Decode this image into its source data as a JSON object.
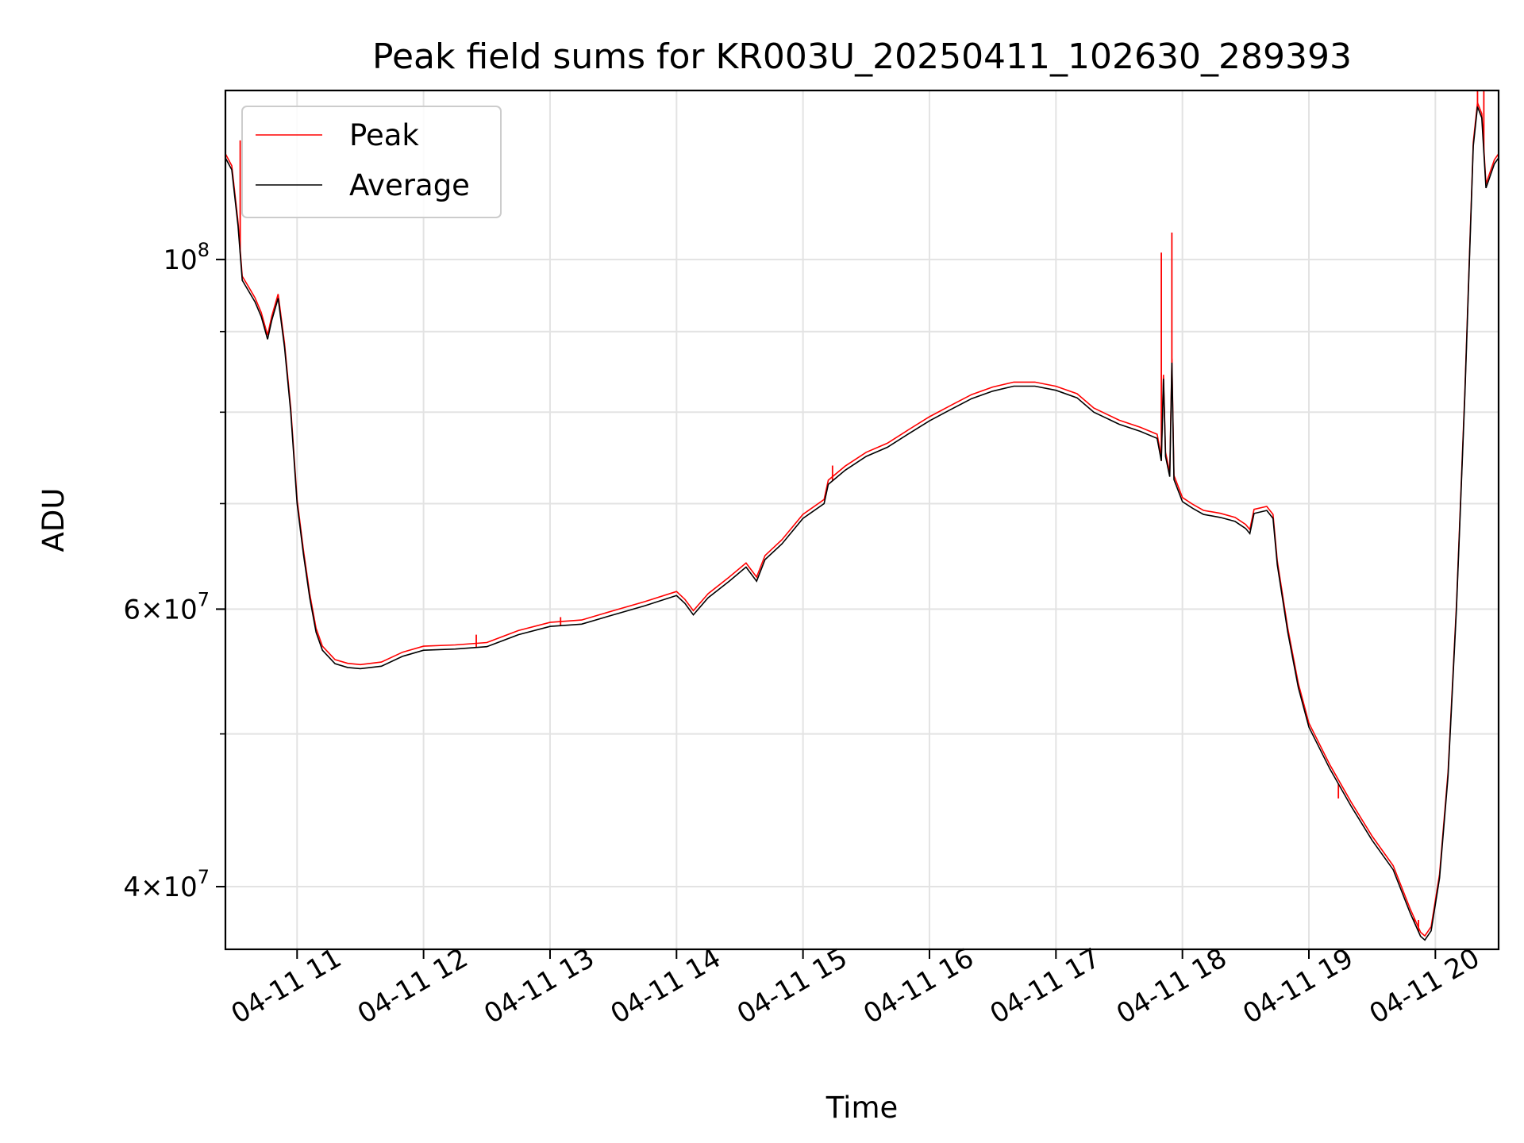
{
  "chart_data": {
    "type": "line",
    "title": "Peak field sums for KR003U_20250411_102630_289393",
    "xlabel": "Time",
    "ylabel": "ADU",
    "y_scale": "log",
    "ylim": [
      36500000,
      128000000
    ],
    "xlim": [
      "2025-04-11 10:26",
      "2025-04-11 20:30"
    ],
    "grid": true,
    "legend_location": "upper-left",
    "x_tick_labels": [
      "04-11 11",
      "04-11 12",
      "04-11 13",
      "04-11 14",
      "04-11 15",
      "04-11 16",
      "04-11 17",
      "04-11 18",
      "04-11 19",
      "04-11 20"
    ],
    "y_tick_labels": [
      {
        "value": 100000000,
        "base": "10",
        "exp": "8"
      },
      {
        "value": 60000000,
        "mant": "6",
        "base": "10",
        "exp": "7"
      },
      {
        "value": 40000000,
        "mant": "4",
        "base": "10",
        "exp": "7"
      }
    ],
    "y_minor_ticks": [
      50000000,
      70000000,
      80000000,
      90000000
    ],
    "series": [
      {
        "name": "Average",
        "color": "#000000",
        "points": [
          [
            "2025-04-11 10:26",
            116000000
          ],
          [
            "2025-04-11 10:29",
            114000000
          ],
          [
            "2025-04-11 10:32",
            105000000
          ],
          [
            "2025-04-11 10:34",
            97000000
          ],
          [
            "2025-04-11 10:37",
            95500000
          ],
          [
            "2025-04-11 10:40",
            94000000
          ],
          [
            "2025-04-11 10:43",
            92000000
          ],
          [
            "2025-04-11 10:46",
            89000000
          ],
          [
            "2025-04-11 10:48",
            91500000
          ],
          [
            "2025-04-11 10:51",
            94500000
          ],
          [
            "2025-04-11 10:54",
            88000000
          ],
          [
            "2025-04-11 10:57",
            80000000
          ],
          [
            "2025-04-11 11:00",
            70000000
          ],
          [
            "2025-04-11 11:03",
            65000000
          ],
          [
            "2025-04-11 11:06",
            61000000
          ],
          [
            "2025-04-11 11:09",
            58000000
          ],
          [
            "2025-04-11 11:12",
            56500000
          ],
          [
            "2025-04-11 11:18",
            55400000
          ],
          [
            "2025-04-11 11:24",
            55100000
          ],
          [
            "2025-04-11 11:30",
            55000000
          ],
          [
            "2025-04-11 11:40",
            55200000
          ],
          [
            "2025-04-11 11:50",
            56000000
          ],
          [
            "2025-04-11 12:00",
            56500000
          ],
          [
            "2025-04-11 12:15",
            56600000
          ],
          [
            "2025-04-11 12:30",
            56800000
          ],
          [
            "2025-04-11 12:45",
            57800000
          ],
          [
            "2025-04-11 13:00",
            58500000
          ],
          [
            "2025-04-11 13:15",
            58700000
          ],
          [
            "2025-04-11 13:30",
            59500000
          ],
          [
            "2025-04-11 13:45",
            60300000
          ],
          [
            "2025-04-11 14:00",
            61200000
          ],
          [
            "2025-04-11 14:04",
            60500000
          ],
          [
            "2025-04-11 14:08",
            59500000
          ],
          [
            "2025-04-11 14:15",
            61000000
          ],
          [
            "2025-04-11 14:25",
            62500000
          ],
          [
            "2025-04-11 14:33",
            63800000
          ],
          [
            "2025-04-11 14:38",
            62500000
          ],
          [
            "2025-04-11 14:42",
            64500000
          ],
          [
            "2025-04-11 14:50",
            66000000
          ],
          [
            "2025-04-11 15:00",
            68500000
          ],
          [
            "2025-04-11 15:10",
            70000000
          ],
          [
            "2025-04-11 15:12",
            72000000
          ],
          [
            "2025-04-11 15:20",
            73500000
          ],
          [
            "2025-04-11 15:30",
            75000000
          ],
          [
            "2025-04-11 15:40",
            76000000
          ],
          [
            "2025-04-11 15:50",
            77500000
          ],
          [
            "2025-04-11 16:00",
            79000000
          ],
          [
            "2025-04-11 16:10",
            80300000
          ],
          [
            "2025-04-11 16:20",
            81600000
          ],
          [
            "2025-04-11 16:30",
            82500000
          ],
          [
            "2025-04-11 16:40",
            83100000
          ],
          [
            "2025-04-11 16:50",
            83100000
          ],
          [
            "2025-04-11 17:00",
            82600000
          ],
          [
            "2025-04-11 17:10",
            81700000
          ],
          [
            "2025-04-11 17:18",
            80000000
          ],
          [
            "2025-04-11 17:30",
            78600000
          ],
          [
            "2025-04-11 17:40",
            77800000
          ],
          [
            "2025-04-11 17:48",
            77000000
          ],
          [
            "2025-04-11 17:50",
            74500000
          ],
          [
            "2025-04-11 17:51",
            84000000
          ],
          [
            "2025-04-11 17:52",
            75000000
          ],
          [
            "2025-04-11 17:54",
            72800000
          ],
          [
            "2025-04-11 17:55",
            86000000
          ],
          [
            "2025-04-11 17:56",
            72500000
          ],
          [
            "2025-04-11 18:00",
            70200000
          ],
          [
            "2025-04-11 18:05",
            69500000
          ],
          [
            "2025-04-11 18:10",
            68900000
          ],
          [
            "2025-04-11 18:18",
            68600000
          ],
          [
            "2025-04-11 18:25",
            68200000
          ],
          [
            "2025-04-11 18:30",
            67500000
          ],
          [
            "2025-04-11 18:32",
            67000000
          ],
          [
            "2025-04-11 18:34",
            69000000
          ],
          [
            "2025-04-11 18:40",
            69300000
          ],
          [
            "2025-04-11 18:43",
            68500000
          ],
          [
            "2025-04-11 18:45",
            64000000
          ],
          [
            "2025-04-11 18:50",
            58000000
          ],
          [
            "2025-04-11 18:55",
            53500000
          ],
          [
            "2025-04-11 19:00",
            50500000
          ],
          [
            "2025-04-11 19:10",
            47500000
          ],
          [
            "2025-04-11 19:20",
            45000000
          ],
          [
            "2025-04-11 19:30",
            42800000
          ],
          [
            "2025-04-11 19:40",
            41000000
          ],
          [
            "2025-04-11 19:48",
            38500000
          ],
          [
            "2025-04-11 19:53",
            37200000
          ],
          [
            "2025-04-11 19:55",
            37000000
          ],
          [
            "2025-04-11 19:58",
            37500000
          ],
          [
            "2025-04-11 20:02",
            40500000
          ],
          [
            "2025-04-11 20:06",
            47000000
          ],
          [
            "2025-04-11 20:10",
            60000000
          ],
          [
            "2025-04-11 20:14",
            82000000
          ],
          [
            "2025-04-11 20:18",
            118000000
          ],
          [
            "2025-04-11 20:20",
            125000000
          ],
          [
            "2025-04-11 20:22",
            123000000
          ],
          [
            "2025-04-11 20:24",
            111000000
          ],
          [
            "2025-04-11 20:28",
            115000000
          ],
          [
            "2025-04-11 20:30",
            116000000
          ]
        ]
      },
      {
        "name": "Peak",
        "color": "#ff0000",
        "spikes": [
          [
            "2025-04-11 10:33",
            119000000
          ],
          [
            "2025-04-11 12:25",
            57800000
          ],
          [
            "2025-04-11 12:40",
            57500000
          ],
          [
            "2025-04-11 13:05",
            59300000
          ],
          [
            "2025-04-11 15:14",
            74000000
          ],
          [
            "2025-04-11 17:50",
            101000000
          ],
          [
            "2025-04-11 17:55",
            104000000
          ],
          [
            "2025-04-11 18:57",
            52500000
          ],
          [
            "2025-04-11 19:14",
            45500000
          ],
          [
            "2025-04-11 19:50",
            38200000
          ],
          [
            "2025-04-11 19:52",
            38100000
          ],
          [
            "2025-04-11 20:20",
            128000000
          ],
          [
            "2025-04-11 20:23",
            128000000
          ]
        ]
      }
    ]
  }
}
